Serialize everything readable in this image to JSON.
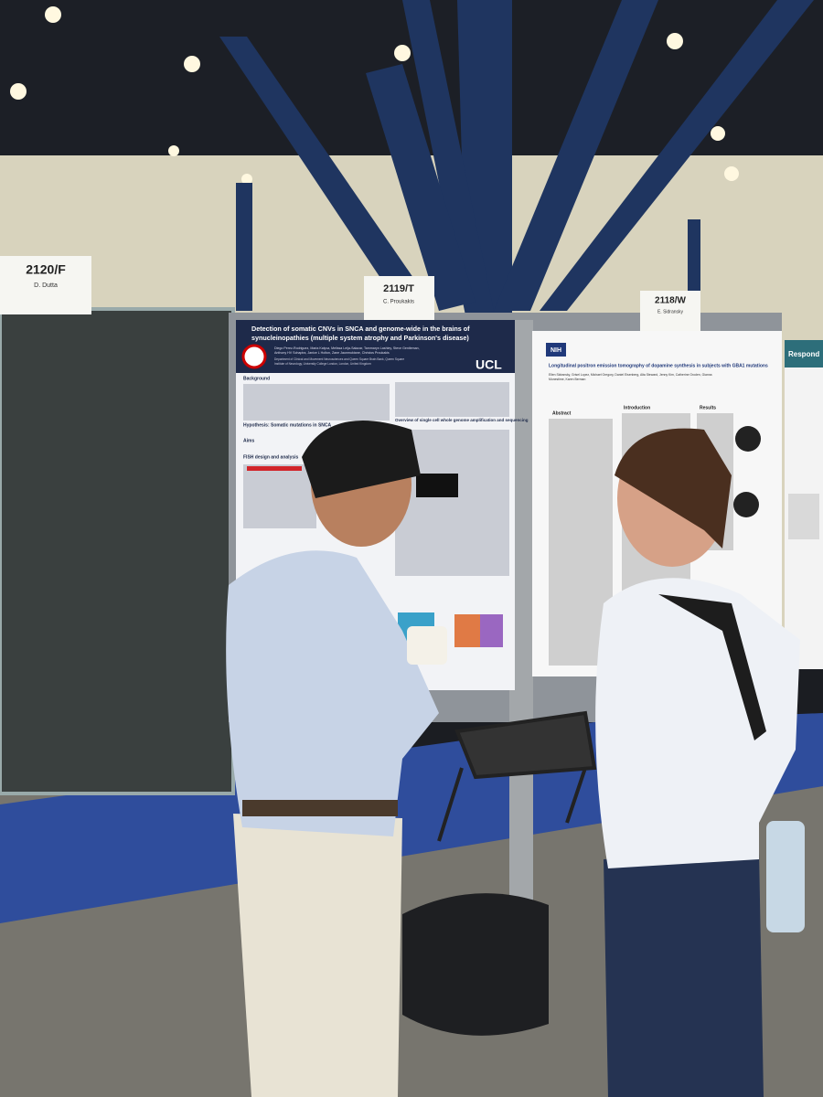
{
  "signs": [
    {
      "number": "2120/F",
      "name": "D. Dutta"
    },
    {
      "number": "2119/T",
      "name": "C. Proukakis"
    },
    {
      "number": "2118/W",
      "name": "E. Sidransky"
    }
  ],
  "posters": [
    {
      "title_lines": [
        "Detection of somatic CNVs in SNCA and genome-wide in the brains of",
        "synucleinopathies (multiple system atrophy and Parkinson's disease)"
      ],
      "authors_lines": [
        "Diego Perez-Rodriguez, Maria Kalyva, Melissa Leija-Salazar, Tammaryn Lashley, Steve Gentleman,",
        "Anthony HV Schapira, Janice L Holton, Zane Jaunmuktane, Christos Proukakis"
      ],
      "affiliation_lines": [
        "Department of Clinical and Movement Neurosciences and Queen Square Brain Bank, Queen Square",
        "Institute of Neurology, University College London, London, United Kingdom"
      ],
      "logo": "UCL",
      "sections": [
        "Background",
        "Hypothesis: Somatic mutations in SNCA",
        "Aims",
        "FISH design and analysis",
        "Overview of single cell whole genome amplification and sequencing"
      ]
    },
    {
      "logo": "NIH",
      "title_lines": [
        "Longitudinal positron emission tomography of dopamine synthesis in subjects with GBA1 mutations"
      ],
      "authors_lines": [
        "Ellen Sidransky, Grisel Lopez, Michael Gregory, Daniel Eisenberg, Alta Steward, Jenny Kim, Catherine Groden, Gianna",
        "Monestime, Karen Berman"
      ],
      "sections": [
        "Abstract",
        "Introduction",
        "Results"
      ]
    },
    {
      "title_lines": [
        "Respond"
      ]
    }
  ]
}
